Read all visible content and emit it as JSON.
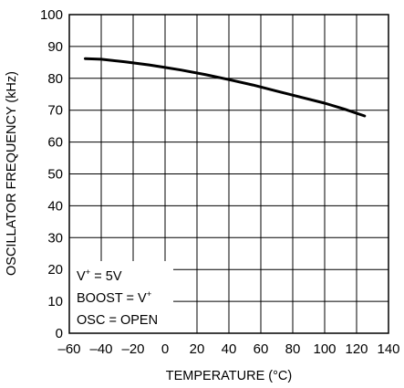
{
  "chart_data": {
    "type": "line",
    "title": "",
    "xlabel": "TEMPERATURE (°C)",
    "ylabel": "OSCILLATOR FREQUENCY (kHz)",
    "xlim": [
      -60,
      140
    ],
    "ylim": [
      0,
      100
    ],
    "x_ticks": [
      -60,
      -40,
      -20,
      0,
      20,
      40,
      60,
      80,
      100,
      120,
      140
    ],
    "x_tick_labels": [
      "–60",
      "–40",
      "–20",
      "0",
      "20",
      "40",
      "60",
      "80",
      "100",
      "120",
      "140"
    ],
    "y_ticks": [
      0,
      10,
      20,
      30,
      40,
      50,
      60,
      70,
      80,
      90,
      100
    ],
    "y_tick_labels": [
      "0",
      "10",
      "20",
      "30",
      "40",
      "50",
      "60",
      "70",
      "80",
      "90",
      "100"
    ],
    "grid": true,
    "legend": "none",
    "line_color": "#000000",
    "series": [
      {
        "x": [
          -50,
          -40,
          -25,
          -10,
          0,
          10,
          25,
          40,
          55,
          70,
          85,
          100,
          112,
          125
        ],
        "values": [
          86.2,
          86.0,
          85.2,
          84.2,
          83.4,
          82.6,
          81.2,
          79.6,
          77.9,
          76.0,
          74.1,
          72.2,
          70.4,
          68.2
        ]
      }
    ],
    "annotation": {
      "line1": {
        "base": "V",
        "sup": "+",
        "rest": " = 5V"
      },
      "line2": {
        "base": "BOOST = V",
        "sup": "+",
        "rest": ""
      },
      "line3": {
        "base": "OSC = OPEN",
        "sup": "",
        "rest": ""
      }
    }
  }
}
